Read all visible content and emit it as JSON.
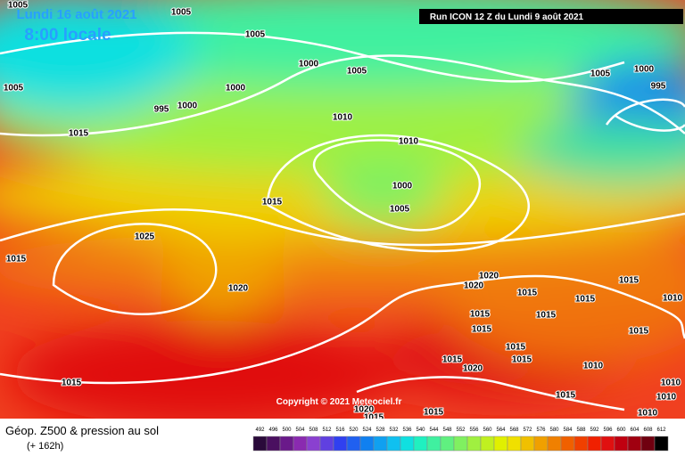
{
  "header": {
    "date": "Lundi 16 août 2021",
    "time": "8:00 locale",
    "run": "Run ICON 12 Z du Lundi 9 août 2021"
  },
  "copyright": "Copyright © 2021 Meteociel.fr",
  "footer": {
    "title": "Géop. Z500 & pression au sol",
    "lead": "(+ 162h)"
  },
  "isobar_labels": [
    "1005",
    "1005",
    "1005",
    "1000",
    "1005",
    "1005",
    "1000",
    "1000",
    "995",
    "1010",
    "1015",
    "1010",
    "1000",
    "1015",
    "1005",
    "1025",
    "1015",
    "1020",
    "1020",
    "1020",
    "1015",
    "1015",
    "1015",
    "1010",
    "1015",
    "1015",
    "1015",
    "1015",
    "1015",
    "1015",
    "1015",
    "1010",
    "1020",
    "1015",
    "1010",
    "1015",
    "1010",
    "1020",
    "1015",
    "1015",
    "1010",
    "1005",
    "1000",
    "995"
  ],
  "scale": {
    "labels": [
      492,
      496,
      500,
      504,
      508,
      512,
      516,
      520,
      524,
      528,
      532,
      536,
      540,
      544,
      548,
      552,
      556,
      560,
      564,
      568,
      572,
      576,
      580,
      584,
      588,
      592,
      596,
      600,
      604,
      608,
      612
    ],
    "colors": [
      "#2a0a3a",
      "#4a1060",
      "#6a1a8a",
      "#8a2ab0",
      "#8a40d0",
      "#6040e0",
      "#3040f0",
      "#2060f0",
      "#1080f0",
      "#10a0f0",
      "#10c0f0",
      "#10e0e0",
      "#20f0c0",
      "#40f0a0",
      "#60f080",
      "#80f060",
      "#a0f040",
      "#c0f020",
      "#e0f000",
      "#f0e000",
      "#f0c000",
      "#f0a000",
      "#f08000",
      "#f06000",
      "#f04000",
      "#f02000",
      "#e01010",
      "#c00010",
      "#a00010",
      "#700010",
      "#000000"
    ]
  }
}
